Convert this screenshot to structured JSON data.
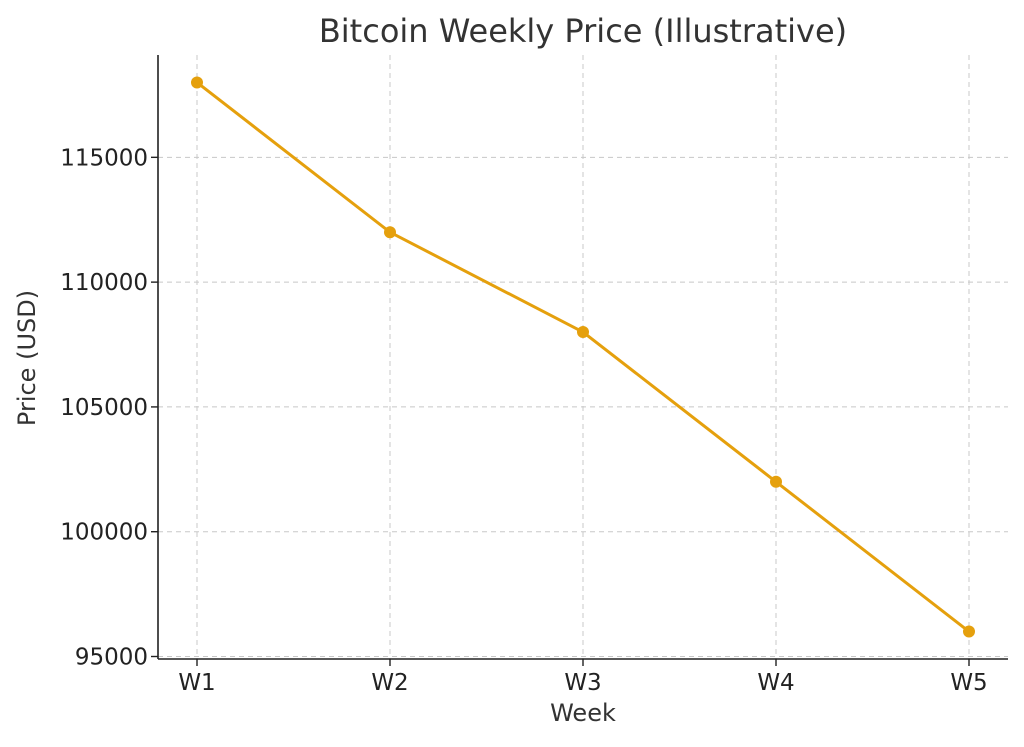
{
  "chart_data": {
    "type": "line",
    "title": "Bitcoin Weekly Price (Illustrative)",
    "xlabel": "Week",
    "ylabel": "Price (USD)",
    "categories": [
      "W1",
      "W2",
      "W3",
      "W4",
      "W5"
    ],
    "series": [
      {
        "values": [
          118000,
          112000,
          108000,
          102000,
          96000
        ],
        "color": "#e5a00d"
      }
    ],
    "ylim": [
      94900,
      119100
    ],
    "yticks": [
      95000,
      100000,
      105000,
      110000,
      115000
    ],
    "grid": true,
    "marker": "circle"
  }
}
